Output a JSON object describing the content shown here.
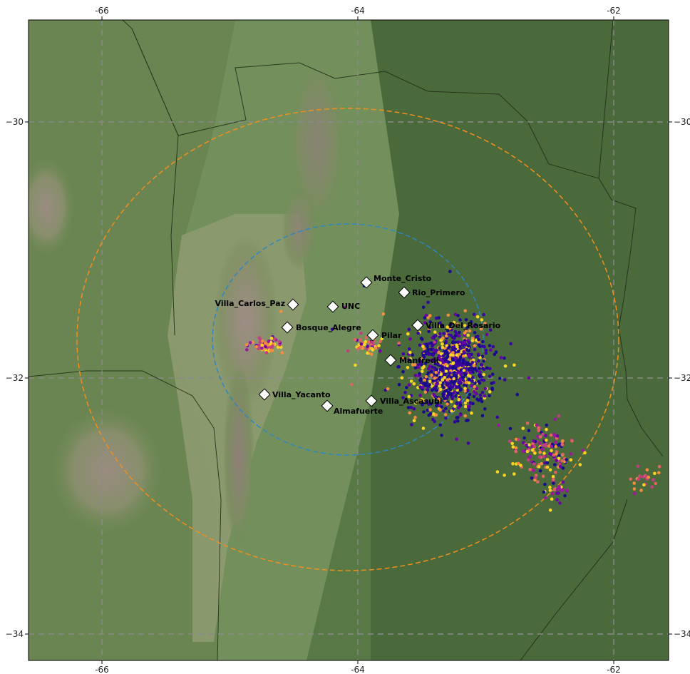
{
  "map": {
    "projection": "plate-carree",
    "lon_range": [
      -66.6,
      -61.5
    ],
    "lat_range": [
      -34.2,
      -29.2
    ],
    "gridlines": true,
    "lon_ticks": [
      -66,
      -64,
      -62
    ],
    "lat_ticks": [
      -30,
      -32,
      -34
    ],
    "colors": {
      "low": "#4d6b3c",
      "high": "#8a7a72",
      "ring_inner": "#2e86c1",
      "ring_outer": "#f28e1c",
      "grid": "#8a8a8a"
    }
  },
  "axes": {
    "top": [
      "-66",
      "-64",
      "-62"
    ],
    "bottom": [
      "-66",
      "-64",
      "-62"
    ],
    "left": [
      "−30",
      "−32",
      "−34"
    ],
    "right": [
      "−30",
      "−32",
      "−34"
    ]
  },
  "rings": [
    {
      "name": "inner",
      "center_lon": -64.0,
      "center_lat": -31.7,
      "radius_km": 100
    },
    {
      "name": "outer",
      "center_lon": -64.0,
      "center_lat": -31.7,
      "radius_km": 200
    }
  ],
  "stations": [
    {
      "name": "Monte_Cristo",
      "lon": -63.89,
      "lat": -31.35
    },
    {
      "name": "Rio_Primero",
      "lon": -63.62,
      "lat": -31.42
    },
    {
      "name": "Villa_Carlos_Paz",
      "lon": -64.46,
      "lat": -31.43
    },
    {
      "name": "UNC",
      "lon": -64.18,
      "lat": -31.44
    },
    {
      "name": "Bosque_Alegre",
      "lon": -64.55,
      "lat": -31.6
    },
    {
      "name": "Villa_Del_Rosario",
      "lon": -63.52,
      "lat": -31.58
    },
    {
      "name": "Pilar",
      "lon": -63.88,
      "lat": -31.67
    },
    {
      "name": "Manfredi",
      "lon": -63.74,
      "lat": -31.85
    },
    {
      "name": "Villa_Yacanto",
      "lon": -64.74,
      "lat": -32.13
    },
    {
      "name": "Almafuerte",
      "lon": -64.25,
      "lat": -32.2
    },
    {
      "name": "Villa_Ascasubi",
      "lon": -63.9,
      "lat": -32.17
    }
  ],
  "lightning_clusters": [
    {
      "name": "east-main",
      "lon": -63.27,
      "lat": -31.93,
      "count": 900
    },
    {
      "name": "southeast",
      "lon": -62.55,
      "lat": -32.57,
      "count": 160
    },
    {
      "name": "southeast-2",
      "lon": -62.45,
      "lat": -32.9,
      "count": 25
    },
    {
      "name": "far-east",
      "lon": -61.75,
      "lat": -32.8,
      "count": 25
    },
    {
      "name": "west-ridge",
      "lon": -64.73,
      "lat": -31.75,
      "count": 60
    },
    {
      "name": "center",
      "lon": -63.92,
      "lat": -31.75,
      "count": 50
    }
  ]
}
